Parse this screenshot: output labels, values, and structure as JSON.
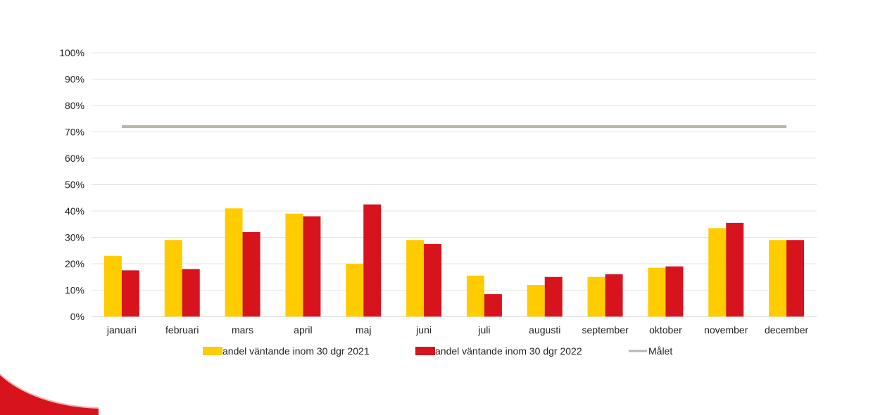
{
  "chart_data": {
    "type": "bar",
    "categories": [
      "januari",
      "februari",
      "mars",
      "april",
      "maj",
      "juni",
      "juli",
      "augusti",
      "september",
      "oktober",
      "november",
      "december"
    ],
    "series": [
      {
        "name": "andel väntande inom 30 dgr 2021",
        "type": "bar",
        "color": "#FFCC00",
        "values": [
          0.23,
          0.29,
          0.41,
          0.39,
          0.2,
          0.29,
          0.155,
          0.12,
          0.15,
          0.185,
          0.335,
          0.29
        ]
      },
      {
        "name": "andel väntande inom 30 dgr 2022",
        "type": "bar",
        "color": "#D7141E",
        "values": [
          0.175,
          0.18,
          0.32,
          0.38,
          0.425,
          0.275,
          0.085,
          0.15,
          0.16,
          0.19,
          0.355,
          0.29
        ]
      },
      {
        "name": "Målet",
        "type": "line",
        "color": "#BDB6AE",
        "values": [
          0.72,
          0.72,
          0.72,
          0.72,
          0.72,
          0.72,
          0.72,
          0.72,
          0.72,
          0.72,
          0.72,
          0.72
        ]
      }
    ],
    "y_ticks": [
      "0%",
      "10%",
      "20%",
      "30%",
      "40%",
      "50%",
      "60%",
      "70%",
      "80%",
      "90%",
      "100%"
    ],
    "ylim": [
      0,
      1
    ],
    "grid": true,
    "legend_position": "bottom"
  }
}
